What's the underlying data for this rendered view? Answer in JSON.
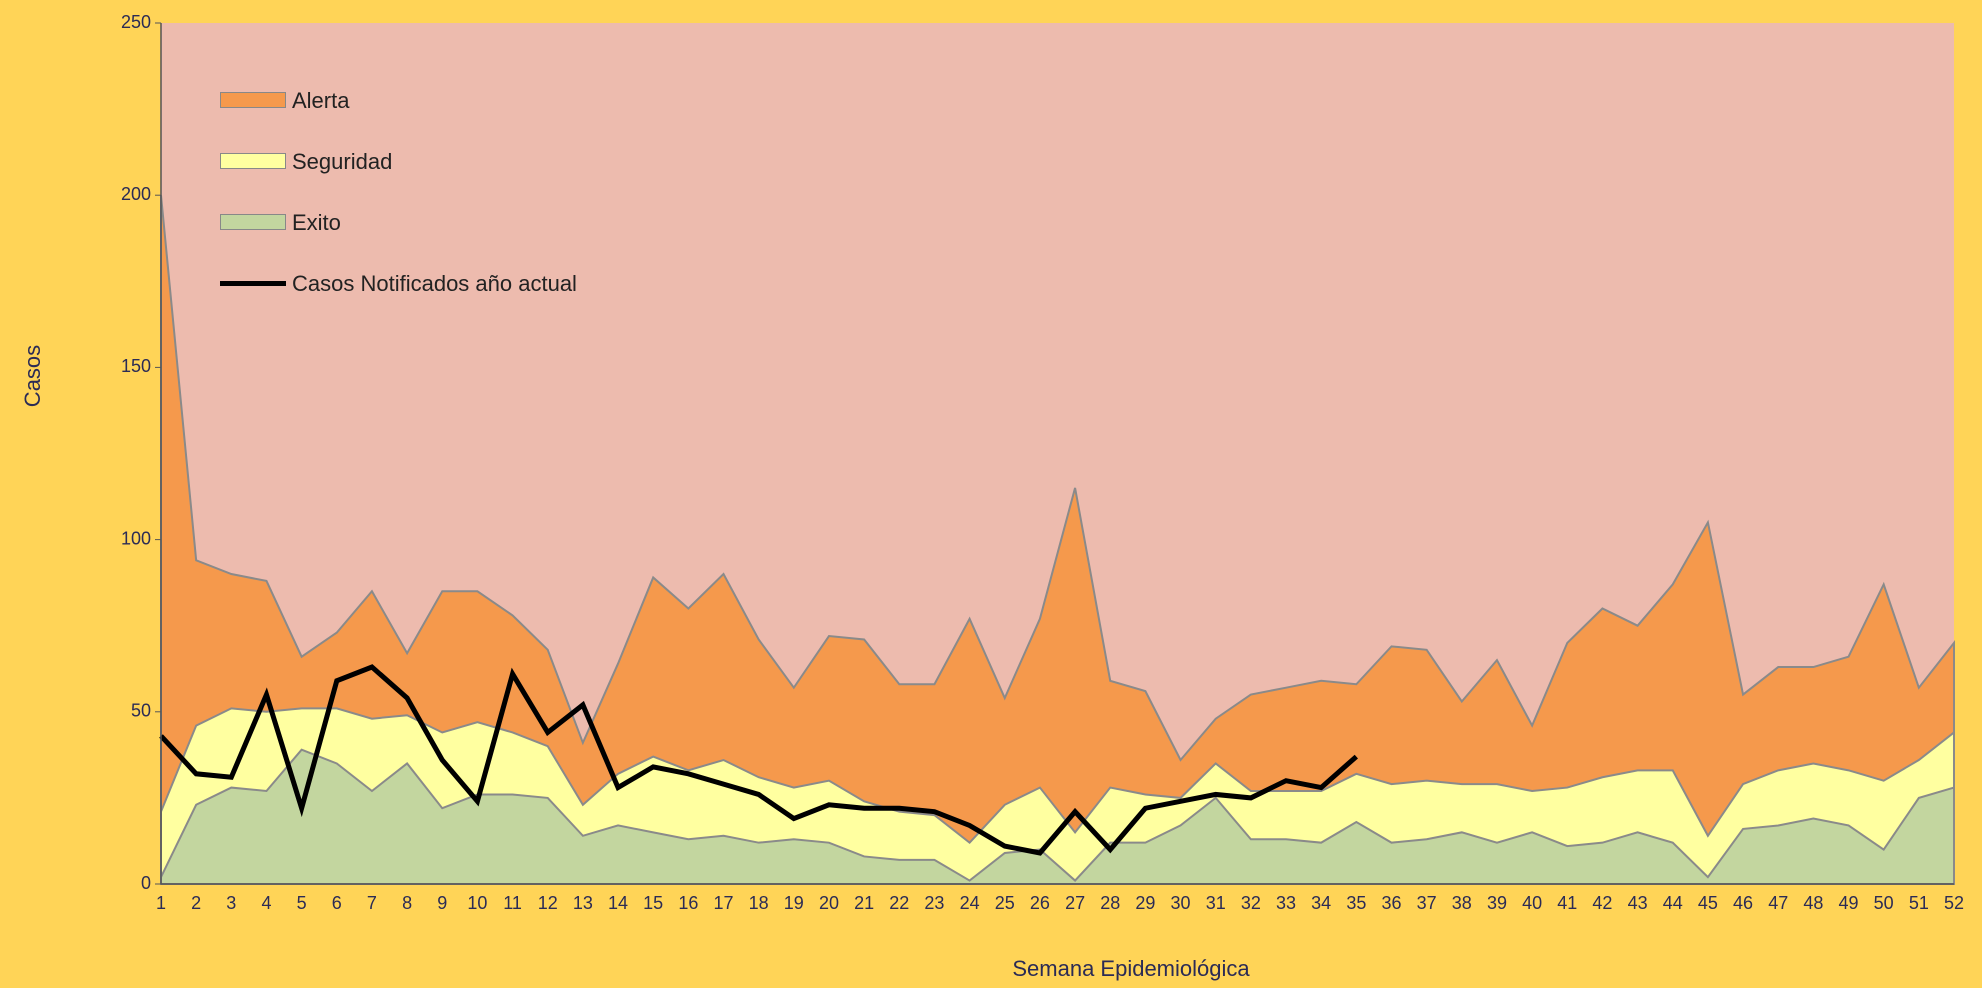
{
  "chart_data": {
    "type": "area",
    "y_label": "Casos",
    "x_label": "Semana Epidemiológica",
    "categories": [
      "1",
      "2",
      "3",
      "4",
      "5",
      "6",
      "7",
      "8",
      "9",
      "10",
      "11",
      "12",
      "13",
      "14",
      "15",
      "16",
      "17",
      "18",
      "19",
      "20",
      "21",
      "22",
      "23",
      "24",
      "25",
      "26",
      "27",
      "28",
      "29",
      "30",
      "31",
      "32",
      "33",
      "34",
      "35",
      "36",
      "37",
      "38",
      "39",
      "40",
      "41",
      "42",
      "43",
      "44",
      "45",
      "46",
      "47",
      "48",
      "49",
      "50",
      "51",
      "52"
    ],
    "ylim": [
      0,
      250
    ],
    "yticks": [
      0,
      50,
      100,
      150,
      200,
      250
    ],
    "legend": "top-left",
    "series": [
      {
        "name": "Alerta",
        "color": "#f5994c",
        "type": "area",
        "values": [
          200,
          94,
          90,
          88,
          66,
          73,
          85,
          67,
          85,
          85,
          78,
          68,
          41,
          64,
          89,
          80,
          90,
          71,
          57,
          72,
          71,
          58,
          58,
          77,
          54,
          77,
          115,
          59,
          56,
          36,
          48,
          55,
          57,
          59,
          58,
          69,
          68,
          53,
          65,
          46,
          70,
          80,
          75,
          87,
          105,
          55,
          63,
          63,
          66,
          87,
          57,
          70
        ]
      },
      {
        "name": "Seguridad",
        "color": "#ffffa0",
        "type": "area",
        "values": [
          21,
          46,
          51,
          50,
          51,
          51,
          48,
          49,
          44,
          47,
          44,
          40,
          23,
          32,
          37,
          33,
          36,
          31,
          28,
          30,
          24,
          21,
          20,
          12,
          23,
          28,
          15,
          28,
          26,
          25,
          35,
          27,
          27,
          27,
          32,
          29,
          30,
          29,
          29,
          27,
          28,
          31,
          33,
          33,
          14,
          29,
          33,
          35,
          33,
          30,
          36,
          44
        ]
      },
      {
        "name": "Exito",
        "color": "#c3d69f",
        "type": "area",
        "values": [
          2,
          23,
          28,
          27,
          39,
          35,
          27,
          35,
          22,
          26,
          26,
          25,
          14,
          17,
          15,
          13,
          14,
          12,
          13,
          12,
          8,
          7,
          7,
          1,
          9,
          10,
          1,
          12,
          12,
          17,
          25,
          13,
          13,
          12,
          18,
          12,
          13,
          15,
          12,
          15,
          11,
          12,
          15,
          12,
          2,
          16,
          17,
          19,
          17,
          10,
          25,
          28
        ]
      },
      {
        "name": "Casos Notificados año actual",
        "color": "#000000",
        "type": "line",
        "values": [
          43,
          32,
          31,
          55,
          22,
          59,
          63,
          54,
          36,
          24,
          61,
          44,
          52,
          28,
          34,
          32,
          29,
          26,
          19,
          23,
          22,
          22,
          21,
          17,
          11,
          9,
          21,
          10,
          22,
          24,
          26,
          25,
          30,
          28,
          37,
          null,
          null,
          null,
          null,
          null,
          null,
          null,
          null,
          null,
          null,
          null,
          null,
          null,
          null,
          null,
          null,
          null
        ]
      }
    ]
  }
}
